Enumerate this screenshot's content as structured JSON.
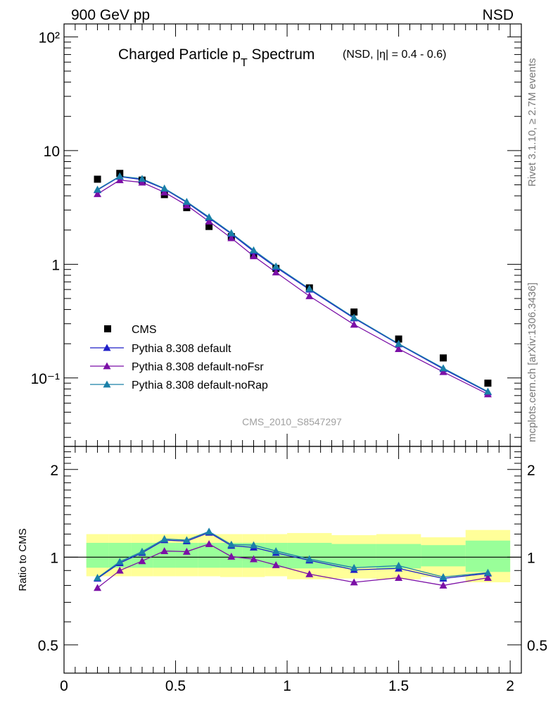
{
  "header": {
    "left": "900 GeV pp",
    "right": "NSD"
  },
  "side_labels": {
    "top": "Rivet 3.1.10, ≥ 2.7M events",
    "bottom": "mcplots.cern.ch [arXiv:1306.3436]"
  },
  "watermark": "CMS_2010_S8547297",
  "colors": {
    "data": "#000000",
    "default": "#1f1fc8",
    "noFsr": "#7b0fa6",
    "noRap": "#1a80a8",
    "band_outer": "#ffff99",
    "band_inner": "#99ff99"
  },
  "chart_data": [
    {
      "type": "scatter",
      "title": "Charged Particle p",
      "title_sub": "T",
      "title_after": " Spectrum",
      "title_extra": "(NSD, |η| = 0.4 - 0.6)",
      "yscale": "log",
      "ylim": [
        0.025,
        130
      ],
      "xlim": [
        0,
        2.05
      ],
      "ytick_labels": [
        "10⁻¹",
        "1",
        "10",
        "10²"
      ],
      "x": [
        0.15,
        0.25,
        0.35,
        0.45,
        0.55,
        0.65,
        0.75,
        0.85,
        0.95,
        1.1,
        1.3,
        1.5,
        1.7,
        1.9
      ],
      "series": [
        {
          "name": "CMS",
          "marker": "square",
          "values": [
            5.6,
            6.3,
            5.5,
            4.1,
            3.15,
            2.15,
            1.75,
            1.2,
            0.92,
            0.62,
            0.38,
            0.22,
            0.15,
            0.09
          ]
        },
        {
          "name": "Pythia 8.308 default",
          "marker": "triangle",
          "values": [
            4.5,
            5.9,
            5.55,
            4.6,
            3.5,
            2.55,
            1.85,
            1.3,
            0.94,
            0.6,
            0.335,
            0.198,
            0.12,
            0.075
          ]
        },
        {
          "name": "Pythia 8.308 default-noFsr",
          "marker": "triangle",
          "values": [
            4.15,
            5.5,
            5.25,
            4.3,
            3.3,
            2.38,
            1.7,
            1.18,
            0.85,
            0.525,
            0.295,
            0.18,
            0.113,
            0.072
          ]
        },
        {
          "name": "Pythia 8.308 default-noRap",
          "marker": "triangle",
          "values": [
            4.55,
            5.95,
            5.65,
            4.65,
            3.55,
            2.6,
            1.88,
            1.33,
            0.96,
            0.61,
            0.34,
            0.2,
            0.122,
            0.076
          ]
        }
      ]
    },
    {
      "type": "line",
      "ylabel": "Ratio to CMS",
      "yscale": "log",
      "ylim": [
        0.4,
        2.4
      ],
      "xlim": [
        0,
        2.05
      ],
      "xtick_labels": [
        "0",
        "0.5",
        "1",
        "1.5",
        "2"
      ],
      "ytick_labels": [
        "0.5",
        "1",
        "2"
      ],
      "reference": 1,
      "bands": [
        {
          "x0": 0.1,
          "x1": 0.2,
          "outer": [
            0.86,
            1.2
          ],
          "inner": [
            0.92,
            1.12
          ]
        },
        {
          "x0": 0.2,
          "x1": 0.3,
          "outer": [
            0.86,
            1.2
          ],
          "inner": [
            0.92,
            1.12
          ]
        },
        {
          "x0": 0.3,
          "x1": 0.4,
          "outer": [
            0.86,
            1.2
          ],
          "inner": [
            0.92,
            1.12
          ]
        },
        {
          "x0": 0.4,
          "x1": 0.5,
          "outer": [
            0.86,
            1.2
          ],
          "inner": [
            0.92,
            1.12
          ]
        },
        {
          "x0": 0.5,
          "x1": 0.6,
          "outer": [
            0.86,
            1.2
          ],
          "inner": [
            0.92,
            1.12
          ]
        },
        {
          "x0": 0.6,
          "x1": 0.7,
          "outer": [
            0.86,
            1.2
          ],
          "inner": [
            0.92,
            1.12
          ]
        },
        {
          "x0": 0.7,
          "x1": 0.8,
          "outer": [
            0.855,
            1.2
          ],
          "inner": [
            0.92,
            1.12
          ]
        },
        {
          "x0": 0.8,
          "x1": 0.9,
          "outer": [
            0.855,
            1.2
          ],
          "inner": [
            0.92,
            1.12
          ]
        },
        {
          "x0": 0.9,
          "x1": 1.0,
          "outer": [
            0.86,
            1.2
          ],
          "inner": [
            0.92,
            1.12
          ]
        },
        {
          "x0": 1.0,
          "x1": 1.2,
          "outer": [
            0.84,
            1.21
          ],
          "inner": [
            0.915,
            1.12
          ]
        },
        {
          "x0": 1.2,
          "x1": 1.4,
          "outer": [
            0.845,
            1.19
          ],
          "inner": [
            0.92,
            1.11
          ]
        },
        {
          "x0": 1.4,
          "x1": 1.6,
          "outer": [
            0.84,
            1.2
          ],
          "inner": [
            0.915,
            1.11
          ]
        },
        {
          "x0": 1.6,
          "x1": 1.8,
          "outer": [
            0.855,
            1.17
          ],
          "inner": [
            0.93,
            1.1
          ]
        },
        {
          "x0": 1.8,
          "x1": 2.0,
          "outer": [
            0.82,
            1.24
          ],
          "inner": [
            0.89,
            1.14
          ]
        }
      ],
      "x": [
        0.15,
        0.25,
        0.35,
        0.45,
        0.55,
        0.65,
        0.75,
        0.85,
        0.95,
        1.1,
        1.3,
        1.5,
        1.7,
        1.9
      ],
      "series": [
        {
          "name": "Pythia 8.308 default",
          "values": [
            0.845,
            0.955,
            1.035,
            1.145,
            1.135,
            1.215,
            1.095,
            1.08,
            1.035,
            0.975,
            0.905,
            0.915,
            0.845,
            0.88
          ]
        },
        {
          "name": "Pythia 8.308 default-noFsr",
          "values": [
            0.785,
            0.9,
            0.97,
            1.05,
            1.045,
            1.11,
            1.005,
            0.985,
            0.94,
            0.875,
            0.82,
            0.85,
            0.8,
            0.85
          ]
        },
        {
          "name": "Pythia 8.308 default-noRap",
          "values": [
            0.85,
            0.965,
            1.045,
            1.155,
            1.145,
            1.225,
            1.105,
            1.1,
            1.05,
            0.985,
            0.92,
            0.935,
            0.855,
            0.885
          ]
        }
      ]
    }
  ]
}
